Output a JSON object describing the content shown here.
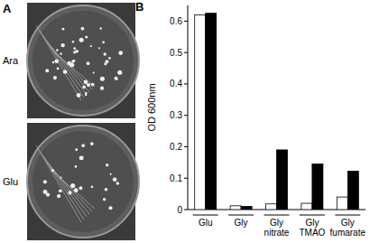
{
  "figure": {
    "panel_labels": [
      "A",
      "B"
    ],
    "plate_labels": [
      "Ara",
      "Glu"
    ]
  },
  "chart_data": {
    "type": "bar",
    "y_label": "OD 600nm",
    "categories": [
      "Glu",
      "Gly",
      "Gly nitrate",
      "Gly TMAO",
      "Gly fumarate"
    ],
    "series": [
      {
        "color": "#ffffff",
        "values": [
          0.62,
          0.012,
          0.018,
          0.02,
          0.04
        ]
      },
      {
        "color": "#000000",
        "values": [
          0.625,
          0.01,
          0.19,
          0.145,
          0.122
        ]
      }
    ],
    "ylim": [
      0,
      0.65
    ],
    "yticks": [
      0,
      0.1,
      0.2,
      0.3,
      0.4,
      0.5,
      0.6
    ],
    "grid": false
  }
}
